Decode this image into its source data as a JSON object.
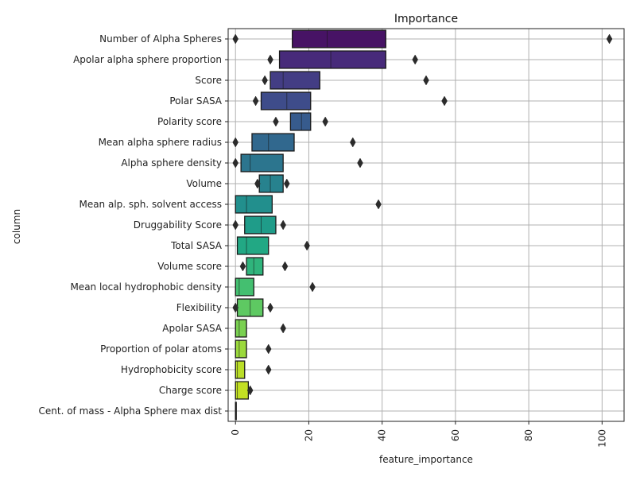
{
  "chart_data": {
    "type": "boxen",
    "title": "Importance",
    "xlabel": "feature_importance",
    "ylabel": "column",
    "xlim": [
      -2,
      106
    ],
    "xticks": [
      0,
      20,
      40,
      60,
      80,
      100
    ],
    "grid": true,
    "legend": "none",
    "categories": [
      "Number of Alpha Spheres",
      "Apolar alpha sphere proportion",
      "Score",
      "Polar SASA",
      "Polarity score",
      "Mean alpha sphere radius",
      "Alpha sphere density",
      "Volume",
      "Mean alp. sph. solvent access",
      "Druggability Score",
      "Total SASA",
      "Volume score",
      "Mean local hydrophobic density",
      "Flexibility",
      "Apolar SASA",
      "Proportion of polar atoms",
      "Hydrophobicity score",
      "Charge score",
      "Cent. of mass - Alpha Sphere max dist"
    ],
    "series": [
      {
        "box": [
          15.5,
          41
        ],
        "median": 25,
        "outliers": [
          0,
          102
        ],
        "color": "#471365"
      },
      {
        "box": [
          12,
          41
        ],
        "median": 26,
        "outliers": [
          9.5,
          49
        ],
        "color": "#472a7a"
      },
      {
        "box": [
          9.5,
          23
        ],
        "median": 13,
        "outliers": [
          8,
          52
        ],
        "color": "#433d84"
      },
      {
        "box": [
          7,
          20.5
        ],
        "median": 14,
        "outliers": [
          5.5,
          57
        ],
        "color": "#3e4c8a"
      },
      {
        "box": [
          15,
          20.5
        ],
        "median": 18,
        "outliers": [
          11,
          24.5
        ],
        "color": "#375b8d"
      },
      {
        "box": [
          4.5,
          16
        ],
        "median": 9,
        "outliers": [
          0,
          32
        ],
        "color": "#31688e"
      },
      {
        "box": [
          1.5,
          13
        ],
        "median": 4,
        "outliers": [
          0,
          34
        ],
        "color": "#2c758e"
      },
      {
        "box": [
          6.5,
          13
        ],
        "median": 9.5,
        "outliers": [
          6,
          14
        ],
        "color": "#27828e"
      },
      {
        "box": [
          0,
          10
        ],
        "median": 3,
        "outliers": [
          39
        ],
        "color": "#228f8d"
      },
      {
        "box": [
          2.5,
          11
        ],
        "median": 7,
        "outliers": [
          0,
          13
        ],
        "color": "#1f9c89"
      },
      {
        "box": [
          0.5,
          9
        ],
        "median": 3,
        "outliers": [
          19.5
        ],
        "color": "#22a884"
      },
      {
        "box": [
          3,
          7.5
        ],
        "median": 5,
        "outliers": [
          2,
          13.5
        ],
        "color": "#2fb47c"
      },
      {
        "box": [
          0,
          5
        ],
        "median": 1,
        "outliers": [
          21
        ],
        "color": "#44bf70"
      },
      {
        "box": [
          0.5,
          7.5
        ],
        "median": 4,
        "outliers": [
          0,
          9.5
        ],
        "color": "#5ec962"
      },
      {
        "box": [
          0,
          3
        ],
        "median": 1,
        "outliers": [
          13
        ],
        "color": "#7ad151"
      },
      {
        "box": [
          0,
          3
        ],
        "median": 1,
        "outliers": [
          9
        ],
        "color": "#9bd93c"
      },
      {
        "box": [
          0,
          2.5
        ],
        "median": 0.5,
        "outliers": [
          9
        ],
        "color": "#bade28"
      },
      {
        "box": [
          0,
          3.5
        ],
        "median": 0.5,
        "outliers": [
          4
        ],
        "color": "#c2df23"
      },
      {
        "box": [
          0,
          0.2
        ],
        "median": 0,
        "outliers": [],
        "color": "#dde318"
      }
    ]
  }
}
